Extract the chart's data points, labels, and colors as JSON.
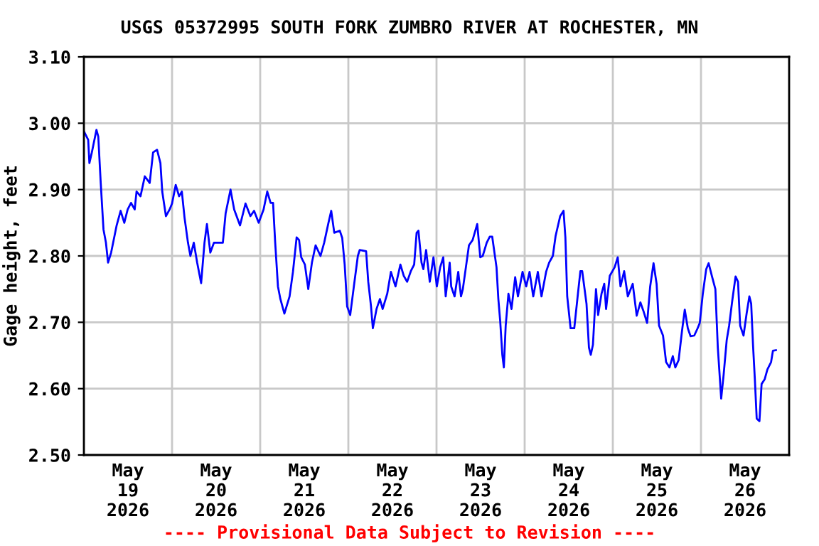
{
  "chart_data": {
    "type": "line",
    "title": "USGS 05372995 SOUTH FORK ZUMBRO RIVER AT ROCHESTER, MN",
    "ylabel": "Gage height, feet",
    "annotations": [
      "---- Provisional Data Subject to Revision ----"
    ],
    "grid": true,
    "xlim": [
      "2026-05-19T00:00",
      "2026-05-27T00:00"
    ],
    "ylim": [
      2.5,
      3.1
    ],
    "yticks": [
      {
        "value": 2.5,
        "label": "2.50"
      },
      {
        "value": 2.6,
        "label": "2.60"
      },
      {
        "value": 2.7,
        "label": "2.70"
      },
      {
        "value": 2.8,
        "label": "2.80"
      },
      {
        "value": 2.9,
        "label": "2.90"
      },
      {
        "value": 3.0,
        "label": "3.00"
      },
      {
        "value": 3.1,
        "label": "3.10"
      }
    ],
    "xticks": [
      {
        "value": "2026-05-19T00:00",
        "label": null
      },
      {
        "value": "2026-05-19T12:00",
        "label": "May\n19\n2026"
      },
      {
        "value": "2026-05-20T00:00",
        "label": null
      },
      {
        "value": "2026-05-20T12:00",
        "label": "May\n20\n2026"
      },
      {
        "value": "2026-05-21T00:00",
        "label": null
      },
      {
        "value": "2026-05-21T12:00",
        "label": "May\n21\n2026"
      },
      {
        "value": "2026-05-22T00:00",
        "label": null
      },
      {
        "value": "2026-05-22T12:00",
        "label": "May\n22\n2026"
      },
      {
        "value": "2026-05-23T00:00",
        "label": null
      },
      {
        "value": "2026-05-23T12:00",
        "label": "May\n23\n2026"
      },
      {
        "value": "2026-05-24T00:00",
        "label": null
      },
      {
        "value": "2026-05-24T12:00",
        "label": "May\n24\n2026"
      },
      {
        "value": "2026-05-25T00:00",
        "label": null
      },
      {
        "value": "2026-05-25T12:00",
        "label": "May\n25\n2026"
      },
      {
        "value": "2026-05-26T00:00",
        "label": null
      },
      {
        "value": "2026-05-26T12:00",
        "label": "May\n26\n2026"
      },
      {
        "value": "2026-05-27T00:00",
        "label": null
      }
    ],
    "series": [
      {
        "color": "#0000ff",
        "marker": "none",
        "line_style": "solid",
        "x": [
          "2026-05-19T00:00",
          "2026-05-19T01:10",
          "2026-05-19T01:30",
          "2026-05-19T02:10",
          "2026-05-19T03:25",
          "2026-05-19T03:55",
          "2026-05-19T04:35",
          "2026-05-19T05:20",
          "2026-05-19T06:00",
          "2026-05-19T06:35",
          "2026-05-19T07:25",
          "2026-05-19T08:55",
          "2026-05-19T10:00",
          "2026-05-19T11:00",
          "2026-05-19T11:55",
          "2026-05-19T12:50",
          "2026-05-19T13:50",
          "2026-05-19T14:20",
          "2026-05-19T15:25",
          "2026-05-19T16:35",
          "2026-05-19T17:55",
          "2026-05-19T18:50",
          "2026-05-19T19:55",
          "2026-05-19T20:50",
          "2026-05-19T21:20",
          "2026-05-19T22:20",
          "2026-05-19T23:20",
          "2026-05-20T00:00",
          "2026-05-20T01:00",
          "2026-05-20T01:55",
          "2026-05-20T02:40",
          "2026-05-20T03:25",
          "2026-05-20T04:20",
          "2026-05-20T05:00",
          "2026-05-20T05:55",
          "2026-05-20T06:50",
          "2026-05-20T07:55",
          "2026-05-20T08:50",
          "2026-05-20T09:30",
          "2026-05-20T10:25",
          "2026-05-20T11:25",
          "2026-05-20T13:50",
          "2026-05-20T14:35",
          "2026-05-20T15:55",
          "2026-05-20T16:55",
          "2026-05-20T18:30",
          "2026-05-20T20:00",
          "2026-05-20T21:20",
          "2026-05-20T22:20",
          "2026-05-20T23:35",
          "2026-05-21T00:55",
          "2026-05-21T01:55",
          "2026-05-21T02:50",
          "2026-05-21T03:30",
          "2026-05-21T04:05",
          "2026-05-21T04:50",
          "2026-05-21T05:30",
          "2026-05-21T06:35",
          "2026-05-21T08:00",
          "2026-05-21T08:55",
          "2026-05-21T09:55",
          "2026-05-21T10:35",
          "2026-05-21T11:10",
          "2026-05-21T12:10",
          "2026-05-21T13:05",
          "2026-05-21T14:05",
          "2026-05-21T15:05",
          "2026-05-21T16:25",
          "2026-05-21T17:25",
          "2026-05-21T18:35",
          "2026-05-21T19:20",
          "2026-05-21T20:10",
          "2026-05-21T21:40",
          "2026-05-21T22:20",
          "2026-05-21T23:00",
          "2026-05-21T23:40",
          "2026-05-22T00:30",
          "2026-05-22T01:30",
          "2026-05-22T02:35",
          "2026-05-22T03:05",
          "2026-05-22T04:50",
          "2026-05-22T05:25",
          "2026-05-22T06:10",
          "2026-05-22T06:40",
          "2026-05-22T07:40",
          "2026-05-22T08:35",
          "2026-05-22T09:20",
          "2026-05-22T10:35",
          "2026-05-22T11:35",
          "2026-05-22T12:50",
          "2026-05-22T14:10",
          "2026-05-22T15:05",
          "2026-05-22T16:00",
          "2026-05-22T17:00",
          "2026-05-22T17:55",
          "2026-05-22T18:35",
          "2026-05-22T19:05",
          "2026-05-22T19:55",
          "2026-05-22T20:25",
          "2026-05-22T21:10",
          "2026-05-22T22:10",
          "2026-05-22T23:10",
          "2026-05-23T00:05",
          "2026-05-23T01:00",
          "2026-05-23T01:50",
          "2026-05-23T02:30",
          "2026-05-23T03:35",
          "2026-05-23T04:00",
          "2026-05-23T04:55",
          "2026-05-23T05:55",
          "2026-05-23T06:40",
          "2026-05-23T07:10",
          "2026-05-23T08:00",
          "2026-05-23T08:50",
          "2026-05-23T09:50",
          "2026-05-23T11:05",
          "2026-05-23T11:55",
          "2026-05-23T12:35",
          "2026-05-23T13:40",
          "2026-05-23T14:30",
          "2026-05-23T15:10",
          "2026-05-23T16:20",
          "2026-05-23T16:50",
          "2026-05-23T17:20",
          "2026-05-23T17:55",
          "2026-05-23T18:20",
          "2026-05-23T18:50",
          "2026-05-23T19:35",
          "2026-05-23T20:25",
          "2026-05-23T21:25",
          "2026-05-23T22:10",
          "2026-05-23T23:25",
          "2026-05-24T00:25",
          "2026-05-24T01:20",
          "2026-05-24T02:20",
          "2026-05-24T03:35",
          "2026-05-24T04:35",
          "2026-05-24T05:50",
          "2026-05-24T06:40",
          "2026-05-24T07:40",
          "2026-05-24T08:25",
          "2026-05-24T09:40",
          "2026-05-24T10:35",
          "2026-05-24T11:05",
          "2026-05-24T11:35",
          "2026-05-24T12:30",
          "2026-05-24T13:30",
          "2026-05-24T14:30",
          "2026-05-24T15:10",
          "2026-05-24T15:40",
          "2026-05-24T16:50",
          "2026-05-24T17:30",
          "2026-05-24T18:00",
          "2026-05-24T18:35",
          "2026-05-24T19:25",
          "2026-05-24T20:00",
          "2026-05-24T20:55",
          "2026-05-24T21:40",
          "2026-05-24T22:10",
          "2026-05-24T23:10",
          "2026-05-25T00:30",
          "2026-05-25T01:20",
          "2026-05-25T02:05",
          "2026-05-25T03:05",
          "2026-05-25T04:05",
          "2026-05-25T05:25",
          "2026-05-25T06:30",
          "2026-05-25T07:30",
          "2026-05-25T08:20",
          "2026-05-25T09:20",
          "2026-05-25T10:10",
          "2026-05-25T11:05",
          "2026-05-25T11:55",
          "2026-05-25T12:35",
          "2026-05-25T13:40",
          "2026-05-25T14:30",
          "2026-05-25T15:25",
          "2026-05-25T16:20",
          "2026-05-25T17:00",
          "2026-05-25T17:55",
          "2026-05-25T18:50",
          "2026-05-25T19:35",
          "2026-05-25T20:25",
          "2026-05-25T21:10",
          "2026-05-25T22:10",
          "2026-05-25T23:05",
          "2026-05-25T23:40",
          "2026-05-26T00:30",
          "2026-05-26T01:25",
          "2026-05-26T02:05",
          "2026-05-26T03:00",
          "2026-05-26T03:55",
          "2026-05-26T04:35",
          "2026-05-26T05:30",
          "2026-05-26T06:10",
          "2026-05-26T07:00",
          "2026-05-26T07:40",
          "2026-05-26T08:30",
          "2026-05-26T09:25",
          "2026-05-26T10:05",
          "2026-05-26T10:40",
          "2026-05-26T11:35",
          "2026-05-26T12:25",
          "2026-05-26T13:10",
          "2026-05-26T13:40",
          "2026-05-26T14:10",
          "2026-05-26T14:40",
          "2026-05-26T15:10",
          "2026-05-26T15:55",
          "2026-05-26T16:30",
          "2026-05-26T17:20",
          "2026-05-26T18:05",
          "2026-05-26T19:05",
          "2026-05-26T19:35",
          "2026-05-26T20:25"
        ],
        "values": [
          2.988,
          2.975,
          2.94,
          2.956,
          2.99,
          2.98,
          2.91,
          2.84,
          2.82,
          2.79,
          2.805,
          2.846,
          2.868,
          2.85,
          2.87,
          2.88,
          2.87,
          2.897,
          2.89,
          2.92,
          2.91,
          2.956,
          2.96,
          2.94,
          2.897,
          2.86,
          2.87,
          2.879,
          2.907,
          2.89,
          2.897,
          2.857,
          2.82,
          2.8,
          2.82,
          2.79,
          2.759,
          2.82,
          2.848,
          2.805,
          2.82,
          2.82,
          2.864,
          2.9,
          2.87,
          2.846,
          2.879,
          2.86,
          2.868,
          2.85,
          2.87,
          2.897,
          2.88,
          2.88,
          2.82,
          2.754,
          2.735,
          2.713,
          2.739,
          2.776,
          2.828,
          2.824,
          2.798,
          2.787,
          2.75,
          2.79,
          2.816,
          2.8,
          2.82,
          2.85,
          2.868,
          2.835,
          2.838,
          2.827,
          2.787,
          2.724,
          2.711,
          2.754,
          2.8,
          2.809,
          2.807,
          2.761,
          2.724,
          2.691,
          2.72,
          2.735,
          2.72,
          2.743,
          2.776,
          2.754,
          2.787,
          2.77,
          2.761,
          2.777,
          2.787,
          2.835,
          2.838,
          2.79,
          2.78,
          2.809,
          2.761,
          2.798,
          2.754,
          2.783,
          2.798,
          2.739,
          2.79,
          2.754,
          2.739,
          2.776,
          2.739,
          2.75,
          2.783,
          2.816,
          2.824,
          2.848,
          2.798,
          2.8,
          2.82,
          2.829,
          2.829,
          2.783,
          2.735,
          2.702,
          2.651,
          2.632,
          2.695,
          2.743,
          2.72,
          2.768,
          2.739,
          2.776,
          2.754,
          2.776,
          2.739,
          2.776,
          2.739,
          2.776,
          2.79,
          2.8,
          2.83,
          2.86,
          2.868,
          2.828,
          2.739,
          2.691,
          2.691,
          2.743,
          2.777,
          2.777,
          2.728,
          2.662,
          2.651,
          2.666,
          2.75,
          2.711,
          2.743,
          2.758,
          2.72,
          2.77,
          2.783,
          2.798,
          2.754,
          2.777,
          2.739,
          2.758,
          2.71,
          2.73,
          2.717,
          2.699,
          2.754,
          2.789,
          2.758,
          2.695,
          2.68,
          2.64,
          2.632,
          2.649,
          2.632,
          2.643,
          2.687,
          2.719,
          2.691,
          2.679,
          2.68,
          2.691,
          2.699,
          2.743,
          2.78,
          2.789,
          2.769,
          2.75,
          2.662,
          2.585,
          2.621,
          2.673,
          2.695,
          2.732,
          2.769,
          2.761,
          2.695,
          2.68,
          2.713,
          2.739,
          2.728,
          2.666,
          2.614,
          2.555,
          2.551,
          2.607,
          2.614,
          2.629,
          2.64,
          2.657,
          2.658
        ]
      }
    ]
  }
}
